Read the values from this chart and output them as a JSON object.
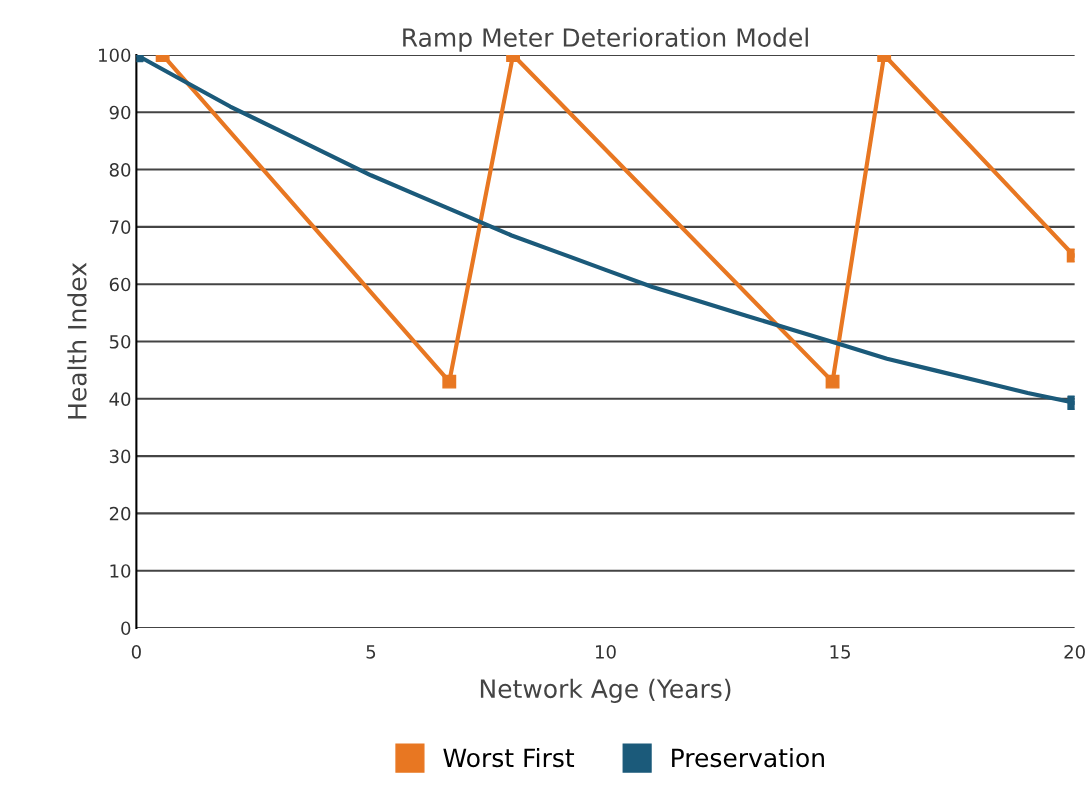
{
  "chart_data": {
    "type": "line",
    "title": "Ramp Meter Deterioration Model",
    "xlabel": "Network Age (Years)",
    "ylabel": "Health Index",
    "xlim": [
      0,
      20
    ],
    "xticks": [
      0,
      5,
      10,
      15,
      20
    ],
    "ylim": [
      0,
      100
    ],
    "yticks": [
      0,
      10,
      20,
      30,
      40,
      50,
      60,
      70,
      80,
      90,
      100
    ],
    "grid": "y",
    "legend": "bottom",
    "marker": "square",
    "series": [
      {
        "name": "Worst First",
        "color": "#e87722",
        "x": [
          0.56,
          6.67,
          8.03,
          14.84,
          15.94,
          19.98
        ],
        "values": [
          100,
          43,
          100,
          43,
          100,
          65
        ]
      },
      {
        "name": "Preservation",
        "color": "#1b5a7a",
        "marker": "none",
        "x": [
          0,
          1,
          2,
          3,
          4,
          5,
          6,
          7,
          8,
          9,
          10,
          11,
          12,
          13,
          14,
          15,
          16,
          17,
          18,
          19,
          20
        ],
        "values": [
          100,
          95.5,
          91,
          87,
          83,
          79,
          75.5,
          72,
          68.5,
          65.5,
          62.5,
          59.5,
          57,
          54.5,
          52,
          49.5,
          47,
          45,
          43,
          41,
          39.3
        ]
      },
      {
        "type": "scatter",
        "color": "#1b5a7a",
        "x": [
          0,
          20
        ],
        "values": [
          100,
          39.3
        ]
      }
    ]
  }
}
